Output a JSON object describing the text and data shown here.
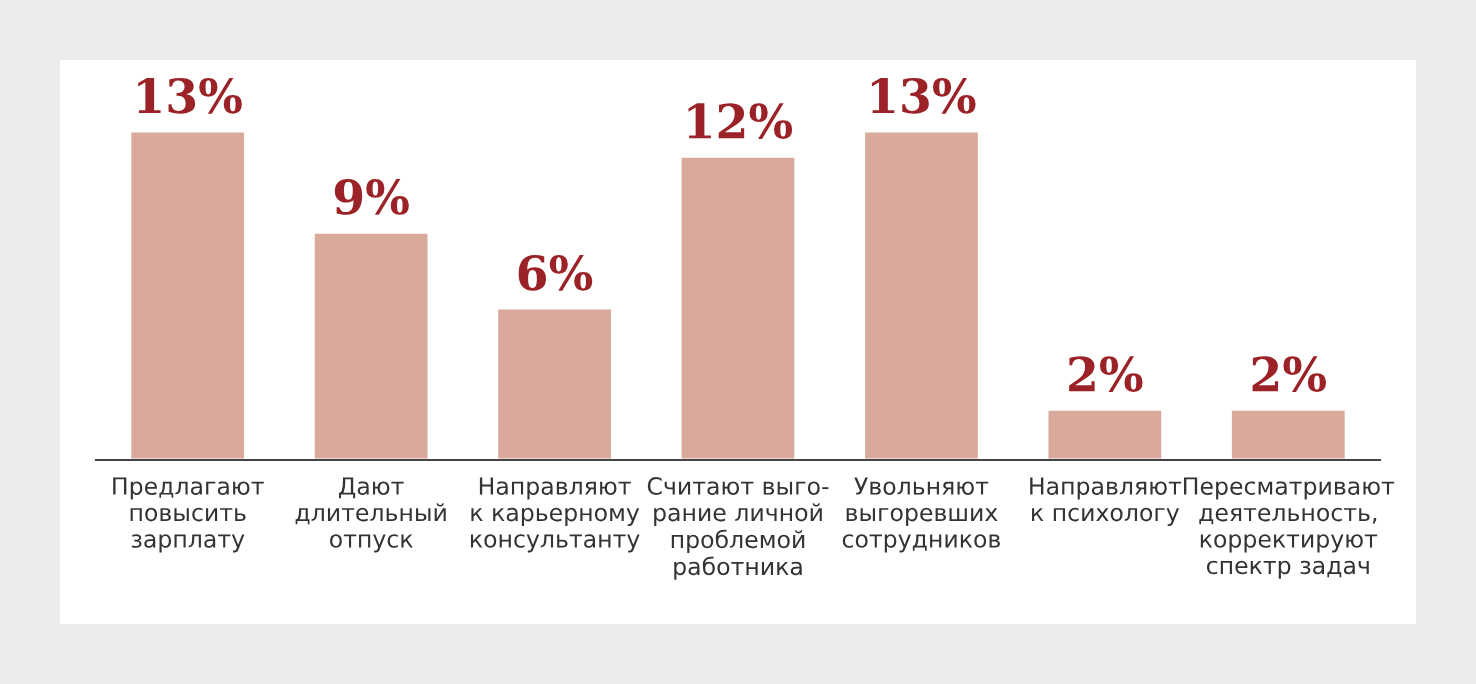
{
  "chart_data": {
    "type": "bar",
    "categories": [
      "Предлагают\nповысить\nзарплату",
      "Дают\nдлительный\nотпуск",
      "Направляют\nк карьерному\nконсультанту",
      "Считают выго-\nрание личной\nпроблемой\nработника",
      "Увольняют\nвыгоревших\nсотрудников",
      "Направляют\nк психологу",
      "Пересматривают\nдеятельность,\nкорректируют\nспектр задач"
    ],
    "values": [
      13,
      9,
      6,
      12,
      13,
      2,
      2
    ],
    "value_labels": [
      "13%",
      "9%",
      "6%",
      "12%",
      "13%",
      "2%",
      "2%"
    ],
    "color": "#d9aa9c"
  }
}
